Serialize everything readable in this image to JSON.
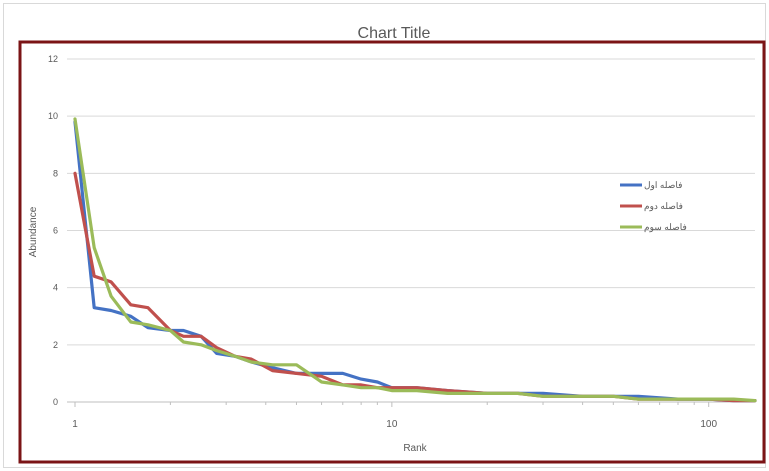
{
  "chart_data": {
    "type": "line",
    "title": "Chart Title",
    "xlabel": "Rank",
    "ylabel": "Abundance",
    "xscale": "log",
    "xlim": [
      1,
      140
    ],
    "ylim": [
      0,
      12
    ],
    "yticks": [
      0,
      2,
      4,
      6,
      8,
      10,
      12
    ],
    "xticks": [
      1,
      10,
      100
    ],
    "grid": "horizontal",
    "legend": "right",
    "series": [
      {
        "name": "فاصله اول",
        "color": "#4472C4",
        "x": [
          1,
          1.15,
          1.3,
          1.5,
          1.7,
          2,
          2.2,
          2.5,
          2.8,
          3.2,
          3.6,
          4.2,
          5,
          6,
          7,
          8,
          9,
          10,
          12,
          15,
          20,
          25,
          30,
          40,
          50,
          60,
          80,
          100,
          120,
          140
        ],
        "values": [
          9.8,
          3.3,
          3.2,
          3.0,
          2.6,
          2.5,
          2.5,
          2.3,
          1.7,
          1.6,
          1.4,
          1.2,
          1.0,
          1.0,
          1.0,
          0.8,
          0.7,
          0.5,
          0.5,
          0.4,
          0.3,
          0.3,
          0.3,
          0.2,
          0.2,
          0.2,
          0.1,
          0.1,
          0.05,
          0.05
        ]
      },
      {
        "name": "فاصله دوم",
        "color": "#C0504D",
        "x": [
          1,
          1.15,
          1.3,
          1.5,
          1.7,
          2,
          2.2,
          2.5,
          2.8,
          3.2,
          3.6,
          4.2,
          5,
          6,
          7,
          8,
          9,
          10,
          12,
          15,
          20,
          25,
          30,
          40,
          50,
          60,
          80,
          100,
          120,
          140
        ],
        "values": [
          8.0,
          4.4,
          4.2,
          3.4,
          3.3,
          2.5,
          2.3,
          2.3,
          1.9,
          1.6,
          1.5,
          1.1,
          1.0,
          0.9,
          0.6,
          0.6,
          0.5,
          0.5,
          0.5,
          0.4,
          0.3,
          0.3,
          0.2,
          0.2,
          0.2,
          0.1,
          0.1,
          0.1,
          0.05,
          0.05
        ]
      },
      {
        "name": "فاصله سوم",
        "color": "#9BBB59",
        "x": [
          1,
          1.15,
          1.3,
          1.5,
          1.7,
          2,
          2.2,
          2.5,
          2.8,
          3.2,
          3.6,
          4.2,
          5,
          6,
          7,
          8,
          9,
          10,
          12,
          15,
          20,
          25,
          30,
          40,
          50,
          60,
          80,
          100,
          120,
          140
        ],
        "values": [
          9.9,
          5.4,
          3.7,
          2.8,
          2.7,
          2.5,
          2.1,
          2.0,
          1.8,
          1.6,
          1.4,
          1.3,
          1.3,
          0.7,
          0.6,
          0.5,
          0.5,
          0.4,
          0.4,
          0.3,
          0.3,
          0.3,
          0.2,
          0.2,
          0.2,
          0.1,
          0.1,
          0.1,
          0.1,
          0.05
        ]
      }
    ]
  }
}
